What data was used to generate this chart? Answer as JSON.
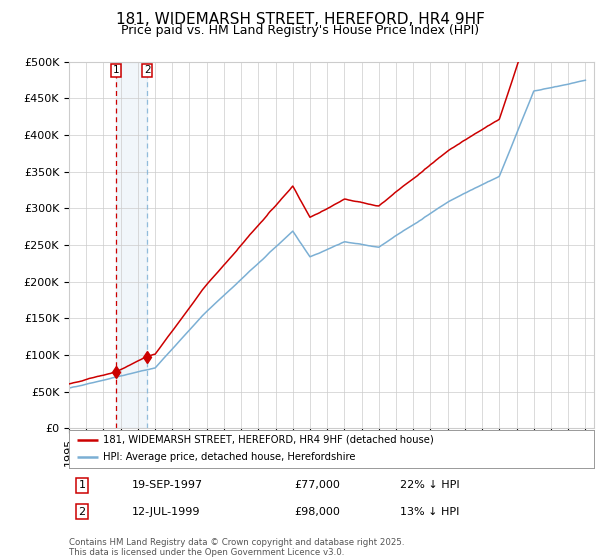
{
  "title": "181, WIDEMARSH STREET, HEREFORD, HR4 9HF",
  "subtitle": "Price paid vs. HM Land Registry's House Price Index (HPI)",
  "ylim": [
    0,
    500000
  ],
  "yticks": [
    0,
    50000,
    100000,
    150000,
    200000,
    250000,
    300000,
    350000,
    400000,
    450000,
    500000
  ],
  "ytick_labels": [
    "£0",
    "£50K",
    "£100K",
    "£150K",
    "£200K",
    "£250K",
    "£300K",
    "£350K",
    "£400K",
    "£450K",
    "£500K"
  ],
  "xlim_start": 1995.0,
  "xlim_end": 2025.5,
  "sale1_year": 1997.72,
  "sale1_price": 77000,
  "sale2_year": 1999.54,
  "sale2_price": 98000,
  "line_color_property": "#cc0000",
  "line_color_hpi": "#7bafd4",
  "marker_color": "#cc0000",
  "vline_color1": "#cc0000",
  "vline_color2": "#7bafd4",
  "legend_label1": "181, WIDEMARSH STREET, HEREFORD, HR4 9HF (detached house)",
  "legend_label2": "HPI: Average price, detached house, Herefordshire",
  "footer": "Contains HM Land Registry data © Crown copyright and database right 2025.\nThis data is licensed under the Open Government Licence v3.0.",
  "background_color": "#ffffff",
  "grid_color": "#cccccc",
  "title_fontsize": 11,
  "subtitle_fontsize": 9,
  "tick_fontsize": 8,
  "label_fontsize": 8
}
